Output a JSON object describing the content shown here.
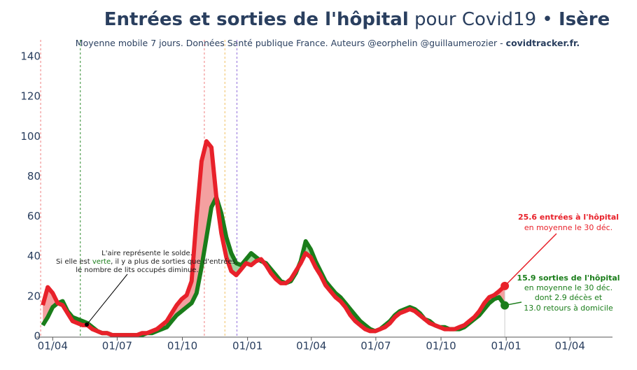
{
  "chart_data": {
    "type": "line",
    "title": {
      "bold": "Entrées et sorties de l'hôpital",
      "normal": "pour Covid19 •",
      "region": "Isère"
    },
    "subtitle": {
      "text": "Moyenne mobile 7 jours. Données Santé publique France. Auteurs @eorphelin @guillaumerozier -",
      "site": "covidtracker.fr."
    },
    "x": [
      -14,
      -7,
      0,
      7,
      14,
      21,
      28,
      35,
      42,
      49,
      56,
      63,
      70,
      77,
      84,
      91,
      98,
      105,
      112,
      119,
      126,
      133,
      140,
      147,
      154,
      161,
      168,
      175,
      182,
      189,
      196,
      203,
      210,
      217,
      224,
      231,
      238,
      245,
      252,
      259,
      266,
      273,
      280,
      287,
      294,
      301,
      308,
      315,
      322,
      329,
      336,
      343,
      350,
      357,
      364,
      371,
      378,
      385,
      392,
      399,
      406,
      413,
      420,
      427,
      434,
      441,
      448,
      455,
      462,
      469,
      476,
      483,
      490,
      497,
      504,
      511,
      518,
      525,
      532,
      539,
      546,
      553,
      560,
      567,
      574,
      581,
      588,
      595,
      602,
      609,
      616,
      623,
      630,
      638
    ],
    "series": [
      {
        "name": "entrées",
        "color": "#e8212a",
        "values": [
          16,
          25,
          22,
          17,
          16,
          12,
          8,
          7,
          6,
          6,
          4,
          3,
          2,
          2,
          1,
          1,
          1,
          1,
          1,
          1,
          2,
          2,
          3,
          4,
          6,
          8,
          12,
          16,
          19,
          21,
          28,
          60,
          88,
          98,
          95,
          70,
          52,
          40,
          33,
          31,
          34,
          37,
          36,
          38,
          39,
          36,
          32,
          29,
          27,
          27,
          29,
          33,
          37,
          42,
          40,
          35,
          31,
          26,
          23,
          20,
          18,
          15,
          11,
          8,
          6,
          4,
          3,
          3,
          4,
          5,
          7,
          10,
          12,
          13,
          14,
          13,
          11,
          9,
          7,
          6,
          5,
          4,
          4,
          4,
          5,
          6,
          8,
          10,
          13,
          17,
          20,
          21,
          23,
          25.6
        ]
      },
      {
        "name": "sorties",
        "color": "#1a7d1a",
        "values": [
          6,
          10,
          15,
          17,
          18,
          13,
          10,
          9,
          8,
          7,
          5,
          3,
          2,
          2,
          1,
          1,
          1,
          1,
          1,
          1,
          1,
          2,
          2,
          3,
          4,
          5,
          8,
          11,
          13,
          15,
          17,
          22,
          35,
          50,
          65,
          70,
          62,
          50,
          42,
          37,
          36,
          39,
          42,
          40,
          38,
          37,
          34,
          31,
          28,
          27,
          28,
          32,
          38,
          48,
          44,
          38,
          33,
          28,
          25,
          22,
          20,
          17,
          14,
          11,
          8,
          6,
          4,
          3,
          4,
          6,
          8,
          11,
          13,
          14,
          15,
          14,
          12,
          9,
          8,
          6,
          5,
          5,
          4,
          4,
          4,
          5,
          7,
          9,
          11,
          14,
          17,
          19,
          20,
          15.9
        ]
      }
    ],
    "xlim": [
      -23,
      790
    ],
    "xticks": [
      {
        "value": 0,
        "label": "01/04"
      },
      {
        "value": 91,
        "label": "01/07"
      },
      {
        "value": 183,
        "label": "01/10"
      },
      {
        "value": 275,
        "label": "01/01"
      },
      {
        "value": 365,
        "label": "01/04"
      },
      {
        "value": 456,
        "label": "01/07"
      },
      {
        "value": 548,
        "label": "01/10"
      },
      {
        "value": 640,
        "label": "01/01"
      },
      {
        "value": 730,
        "label": "01/04"
      }
    ],
    "ylim": [
      0,
      140
    ],
    "yticks": [
      0,
      20,
      40,
      60,
      80,
      100,
      120,
      140
    ],
    "vlines": [
      {
        "x": -17,
        "color": "#f08080"
      },
      {
        "x": 39,
        "color": "#2e8b2e"
      },
      {
        "x": 214,
        "color": "#f08080"
      },
      {
        "x": 243,
        "color": "#f0c060"
      },
      {
        "x": 260,
        "color": "#9370db"
      }
    ],
    "note": {
      "line1": "L'aire représente le solde.",
      "line2a": "Si elle est",
      "line2b": "verte",
      "line2c": ", il y a plus de sorties que d'entrées,",
      "line3": "le nombre de lits occupés diminue."
    },
    "entries_note": {
      "bold": "25.6 entrées à l'hôpital",
      "line2": "en moyenne le 30 déc."
    },
    "exits_note": {
      "bold": "15.9 sorties de l'hôpital",
      "line2": "en moyenne le 30 déc.",
      "line3": "dont 2.9 décès et",
      "line4": "13.0 retours à domicile"
    }
  }
}
